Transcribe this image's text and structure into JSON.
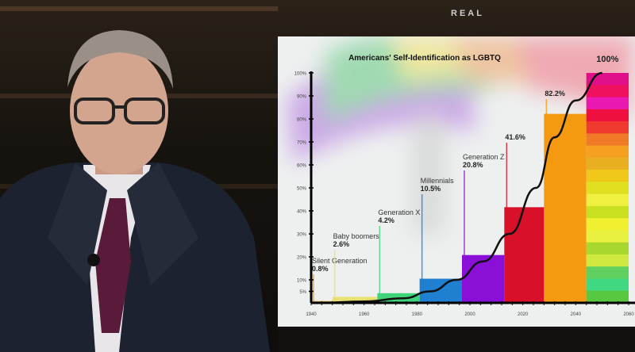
{
  "show": {
    "logo_text": "REAL"
  },
  "chart_data": {
    "type": "bar",
    "title": "Americans' Self-Identification as LGBTQ",
    "xlabel": "",
    "ylabel": "",
    "xlim": [
      1940,
      2060
    ],
    "ylim": [
      0,
      100
    ],
    "x_ticks": [
      "1940",
      "1960",
      "1980",
      "2000",
      "2020",
      "2040",
      "2060"
    ],
    "y_ticks": [
      "5%",
      "10%",
      "20%",
      "30%",
      "40%",
      "50%",
      "60%",
      "70%",
      "80%",
      "90%",
      "100%"
    ],
    "grid": false,
    "bars": [
      {
        "label": "Silent Generation",
        "value_label": "0.8%",
        "value": 0.8,
        "start": 1940,
        "end": 1948,
        "color": "#d9a84a"
      },
      {
        "label": "Baby boomers",
        "value_label": "2.6%",
        "value": 2.6,
        "start": 1948,
        "end": 1965,
        "color": "#e8e070"
      },
      {
        "label": "Generation X",
        "value_label": "4.2%",
        "value": 4.2,
        "start": 1965,
        "end": 1981,
        "color": "#3fd47a"
      },
      {
        "label": "Millennials",
        "value_label": "10.5%",
        "value": 10.5,
        "start": 1981,
        "end": 1997,
        "color": "#1f7fd0"
      },
      {
        "label": "Generation Z",
        "value_label": "20.8%",
        "value": 20.8,
        "start": 1997,
        "end": 2013,
        "color": "#8a10d8"
      },
      {
        "label": "",
        "value_label": "41.6%",
        "value": 41.6,
        "start": 2013,
        "end": 2028,
        "color": "#d8102a"
      },
      {
        "label": "",
        "value_label": "82.2%",
        "value": 82.2,
        "start": 2028,
        "end": 2044,
        "color": "#f59a10"
      },
      {
        "label": "",
        "value_label": "100%",
        "value": 100,
        "start": 2044,
        "end": 2060,
        "color": "rainbow"
      }
    ],
    "trend_curve": [
      [
        1943,
        0
      ],
      [
        1960,
        0.6
      ],
      [
        1975,
        2
      ],
      [
        1985,
        5
      ],
      [
        1995,
        10
      ],
      [
        2005,
        18
      ],
      [
        2015,
        30
      ],
      [
        2025,
        50
      ],
      [
        2032,
        72
      ],
      [
        2040,
        88
      ],
      [
        2050,
        100
      ]
    ],
    "rainbow_stripes": [
      "#e0108a",
      "#f01060",
      "#e818b0",
      "#f01040",
      "#f03a30",
      "#f07a28",
      "#f5a020",
      "#e8b020",
      "#f0c81a",
      "#e0e020",
      "#f0f040",
      "#c8e020",
      "#f0f030",
      "#e8f040",
      "#a8d830",
      "#d0e840",
      "#60d060",
      "#40d880",
      "#58c840"
    ]
  }
}
